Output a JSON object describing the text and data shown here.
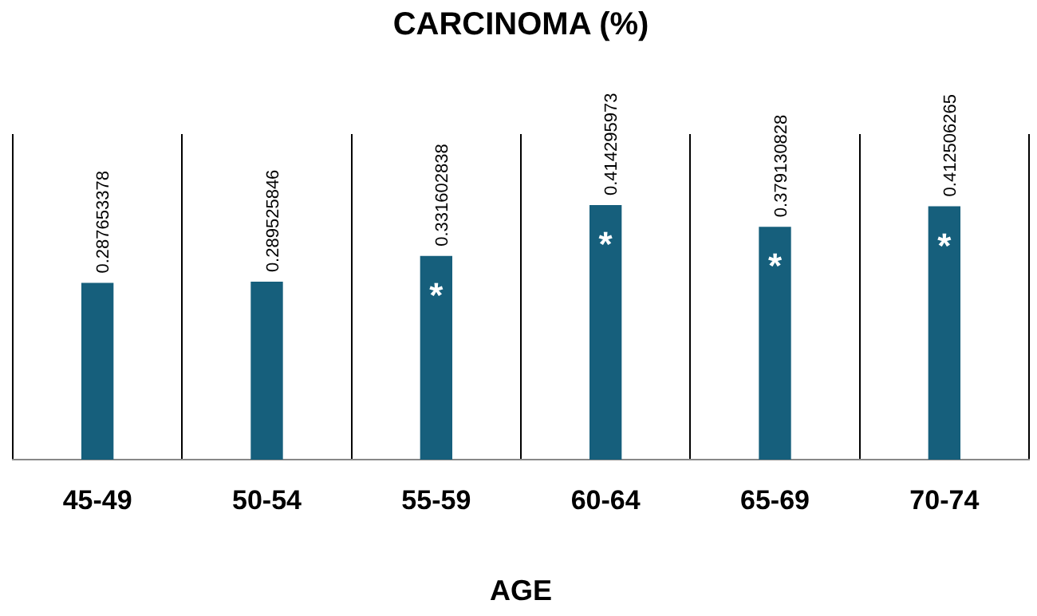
{
  "chart_data": {
    "type": "bar",
    "title": "CARCINOMA (%)",
    "xlabel": "AGE",
    "categories": [
      "45-49",
      "50-54",
      "55-59",
      "60-64",
      "65-69",
      "70-74"
    ],
    "values": [
      0.287653378,
      0.289525846,
      0.331602838,
      0.414295973,
      0.379130828,
      0.412506265
    ],
    "color": "#165f7c",
    "ylim": [
      0,
      0.53
    ],
    "data_labels": true,
    "grid": "x",
    "tick_labels": "x",
    "annotations": [
      "*",
      "*",
      "*",
      "*"
    ]
  }
}
